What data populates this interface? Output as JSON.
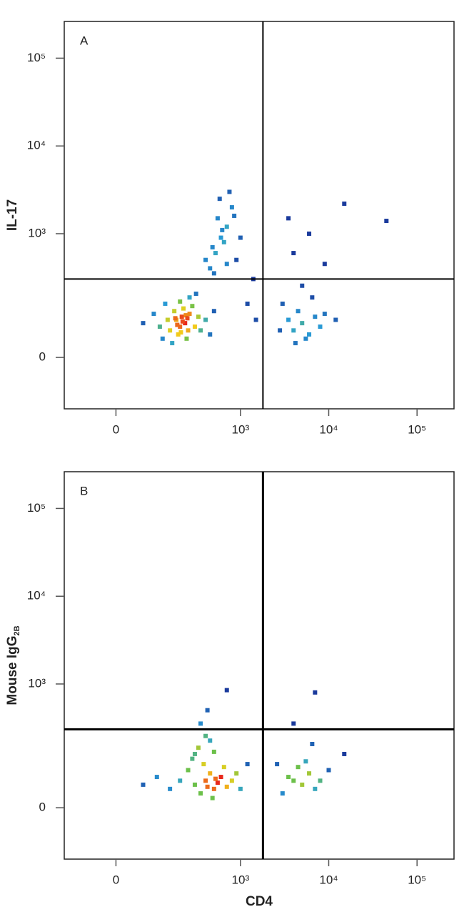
{
  "chart_data": [
    {
      "type": "scatter",
      "label": "A",
      "ylabel": "IL-17",
      "scale": "biexponential",
      "xlim": [
        -140,
        262144
      ],
      "ylim": [
        -140,
        262144
      ],
      "xticks": [
        0,
        {
          "value": 1000,
          "label": "10³"
        },
        {
          "value": 10000,
          "label": "10⁴"
        },
        {
          "value": 100000,
          "label": "10⁵"
        }
      ],
      "yticks": [
        0,
        {
          "value": 1000,
          "label": "10³"
        },
        {
          "value": 10000,
          "label": "10⁴"
        },
        {
          "value": 100000,
          "label": "10⁵"
        }
      ],
      "gate": {
        "x": 1800,
        "y": 300
      },
      "x": [
        120,
        150,
        180,
        200,
        210,
        230,
        250,
        170,
        190,
        220,
        260,
        140,
        300,
        280,
        240,
        160,
        330,
        200,
        110,
        90,
        350,
        260,
        185,
        215,
        235,
        205,
        175,
        245,
        60,
        400,
        450,
        500,
        130,
        310,
        450,
        520,
        600,
        700,
        550,
        800,
        650,
        500,
        900,
        750,
        620,
        480,
        850,
        400,
        700,
        1000,
        580,
        4000,
        5000,
        6000,
        4500,
        3500,
        7000,
        5500,
        3000,
        8000,
        6500,
        5000,
        4200,
        9000,
        2800,
        12000,
        4000,
        6000,
        3500,
        9000,
        15000,
        45000,
        1200,
        1500,
        1400
      ],
      "y": [
        40,
        60,
        90,
        70,
        100,
        80,
        60,
        120,
        50,
        130,
        110,
        90,
        70,
        140,
        40,
        30,
        100,
        160,
        70,
        110,
        60,
        180,
        75,
        85,
        105,
        55,
        95,
        95,
        80,
        90,
        50,
        120,
        150,
        200,
        400,
        600,
        900,
        1200,
        1500,
        2000,
        800,
        350,
        500,
        3000,
        1100,
        700,
        1600,
        500,
        450,
        900,
        2500,
        60,
        80,
        50,
        120,
        90,
        100,
        40,
        150,
        70,
        180,
        250,
        30,
        110,
        60,
        90,
        600,
        1000,
        1500,
        450,
        2200,
        1400,
        150,
        90,
        300
      ]
    },
    {
      "type": "scatter",
      "label": "B",
      "ylabel": "Mouse IgG",
      "ylabel_subscript": "2B",
      "xlabel": "CD4",
      "scale": "biexponential",
      "xlim": [
        -140,
        262144
      ],
      "ylim": [
        -140,
        262144
      ],
      "xticks": [
        0,
        {
          "value": 1000,
          "label": "10³"
        },
        {
          "value": 10000,
          "label": "10⁴"
        },
        {
          "value": 100000,
          "label": "10⁵"
        }
      ],
      "yticks": [
        0,
        {
          "value": 1000,
          "label": "10³"
        },
        {
          "value": 10000,
          "label": "10⁴"
        },
        {
          "value": 100000,
          "label": "10⁵"
        }
      ],
      "gate": {
        "x": 1800,
        "y": 300
      },
      "x": [
        300,
        400,
        500,
        600,
        450,
        350,
        550,
        700,
        250,
        200,
        150,
        650,
        800,
        480,
        380,
        520,
        420,
        900,
        100,
        60,
        280,
        330,
        400,
        350,
        450,
        300,
        500,
        1000,
        1200,
        420,
        700,
        4000,
        5000,
        6000,
        7000,
        4500,
        3500,
        8000,
        5500,
        3000,
        10000,
        6500,
        4000,
        7000,
        15000,
        2600
      ],
      "y": [
        50,
        60,
        40,
        70,
        80,
        30,
        55,
        45,
        90,
        60,
        40,
        100,
        60,
        20,
        110,
        65,
        45,
        80,
        70,
        50,
        130,
        180,
        250,
        350,
        220,
        150,
        160,
        40,
        110,
        500,
        850,
        60,
        50,
        80,
        40,
        100,
        70,
        60,
        120,
        30,
        90,
        200,
        350,
        800,
        150,
        110
      ]
    }
  ]
}
